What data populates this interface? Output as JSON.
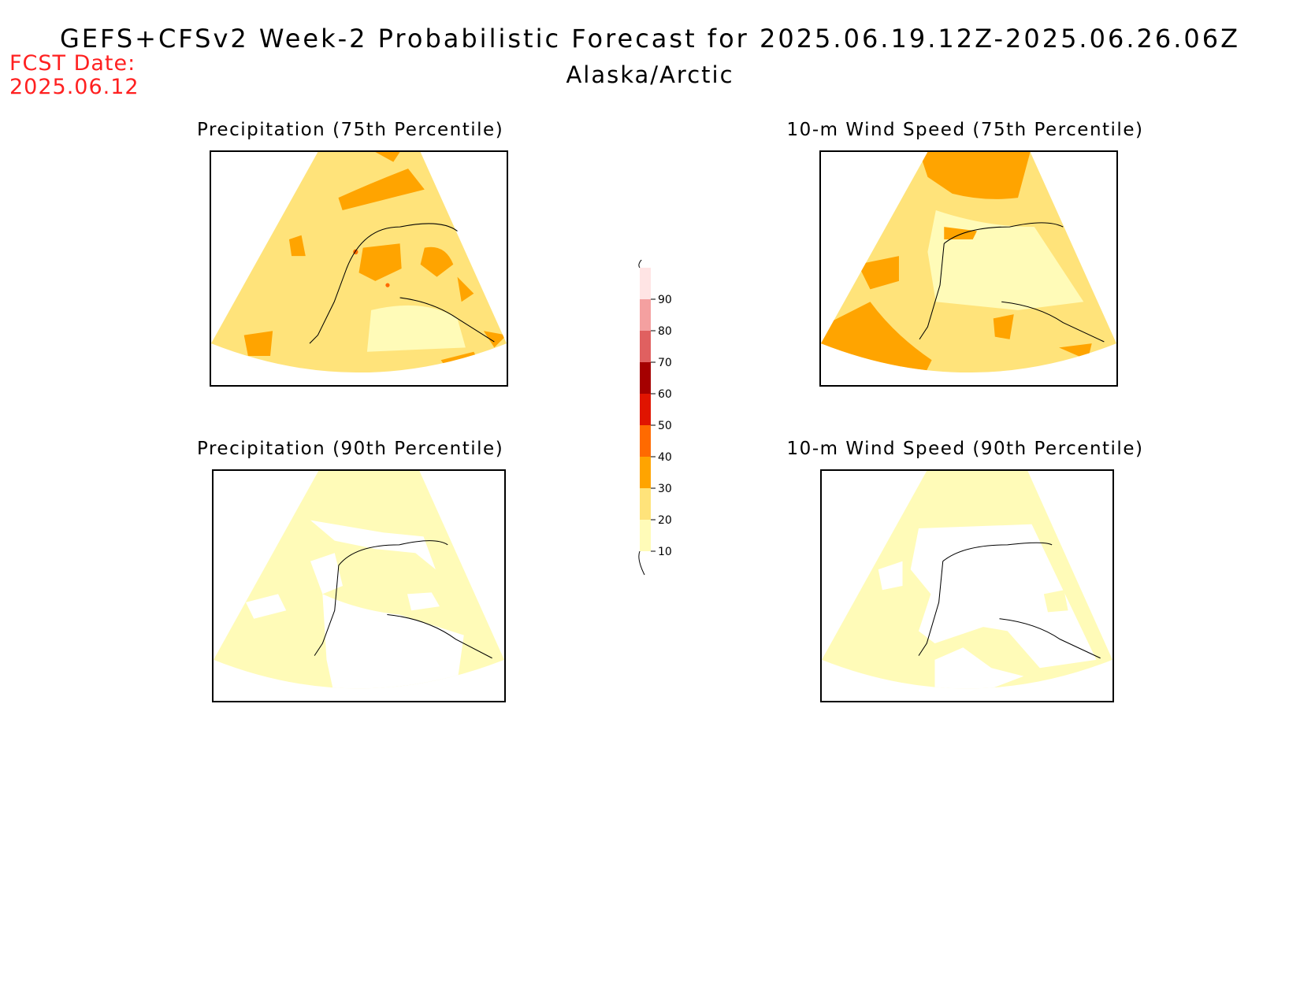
{
  "header": {
    "title": "GEFS+CFSv2 Week-2 Probabilistic Forecast for 2025.06.19.12Z-2025.06.26.06Z",
    "subtitle": "Alaska/Arctic",
    "fcst_label": "FCST Date:",
    "fcst_date": "2025.06.12"
  },
  "panels": [
    {
      "title": "Precipitation (75th Percentile)",
      "dominant_category": "20-30",
      "hotspot_category": "30-40"
    },
    {
      "title": "10-m Wind Speed (75th Percentile)",
      "dominant_category": "20-30",
      "hotspot_category": "30-40"
    },
    {
      "title": "Precipitation (90th Percentile)",
      "dominant_category": "10-20",
      "hotspot_category": "<10"
    },
    {
      "title": "10-m Wind Speed (90th Percentile)",
      "dominant_category": "10-20",
      "hotspot_category": "<10"
    }
  ],
  "colorbar": {
    "ticks": [
      "10",
      "20",
      "30",
      "40",
      "50",
      "60",
      "70",
      "80",
      "90"
    ],
    "colors": [
      "#fffbb8",
      "#ffe37a",
      "#ffa400",
      "#ff6a00",
      "#e01400",
      "#a50000",
      "#e06060",
      "#f4a0a0",
      "#ffe4e4"
    ]
  }
}
